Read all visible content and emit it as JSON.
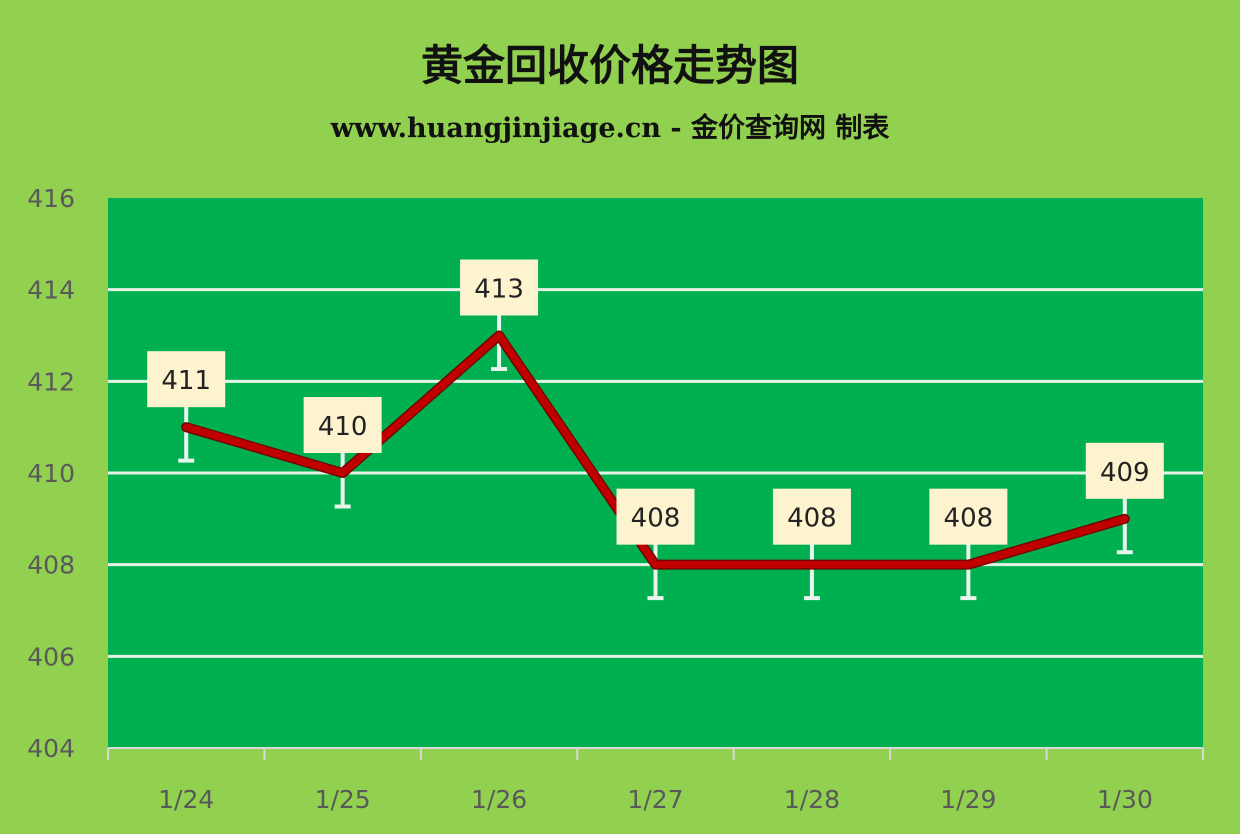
{
  "chart_data": {
    "type": "line",
    "title": "黄金回收价格走势图",
    "subtitle": "www.huangjinjiage.cn - 金价查询网 制表",
    "categories": [
      "1/24",
      "1/25",
      "1/26",
      "1/27",
      "1/28",
      "1/29",
      "1/30"
    ],
    "values": [
      411,
      410,
      413,
      408,
      408,
      408,
      409
    ],
    "data_labels": [
      "411",
      "410",
      "413",
      "408",
      "408",
      "408",
      "409"
    ],
    "error_bars": true,
    "ylim": [
      404,
      416
    ],
    "yticks": [
      404,
      406,
      408,
      410,
      412,
      414,
      416
    ],
    "grid": true,
    "legend": "none",
    "colors": {
      "background": "#92d050",
      "plot": "#00b050",
      "line": "#c00000",
      "gridline": "#e6f2e6",
      "label_box": "#fdf3cf"
    }
  }
}
